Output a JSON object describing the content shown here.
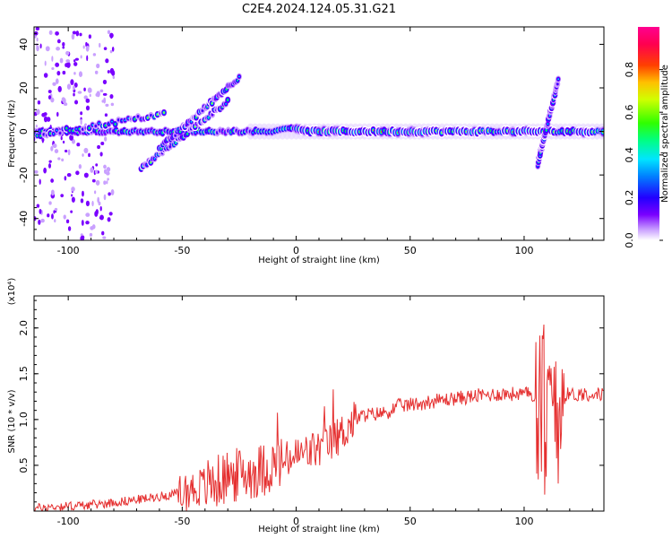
{
  "title": "C2E4.2024.124.05.31.G21",
  "chart_data": [
    {
      "type": "heatmap",
      "title": "C2E4.2024.124.05.31.G21",
      "xlabel": "Height of straight line (km)",
      "ylabel": "Frequency (Hz)",
      "xlim": [
        -115,
        135
      ],
      "ylim": [
        -50,
        48
      ],
      "xticks": [
        -100,
        -50,
        0,
        50,
        100
      ],
      "yticks": [
        -40,
        -20,
        0,
        20,
        40
      ],
      "colorbar": {
        "label": "Normalized spectral amplitude",
        "ticks": [
          "0.0",
          "0.2",
          "0.4",
          "0.6",
          "0.8"
        ],
        "range": [
          0,
          1
        ],
        "colormap": "rainbow"
      },
      "features": [
        {
          "name": "main band",
          "x": [
            -115,
            135
          ],
          "y_center": 0,
          "note": "strong continuous ridge near 0 Hz"
        },
        {
          "name": "rising branch A",
          "x": [
            -115,
            -58
          ],
          "y": [
            -2,
            8
          ]
        },
        {
          "name": "rising branch B",
          "x": [
            -68,
            -30
          ],
          "y": [
            -17,
            14
          ]
        },
        {
          "name": "rising branch C",
          "x": [
            -60,
            -25
          ],
          "y": [
            -8,
            25
          ]
        },
        {
          "name": "spike near 110",
          "x": [
            106,
            115
          ],
          "y": [
            -15,
            24
          ]
        }
      ],
      "grid": false
    },
    {
      "type": "line",
      "xlabel": "Height of straight line (km)",
      "ylabel": "SNR (10 * v/v)",
      "yscale_label": "(x10⁴)",
      "xlim": [
        -115,
        135
      ],
      "ylim": [
        0,
        2.35
      ],
      "xticks": [
        -100,
        -50,
        0,
        50,
        100
      ],
      "yticks": [
        "0.5",
        "1.0",
        "1.5",
        "2.0"
      ],
      "series": [
        {
          "color": "#e53030",
          "x": [
            -115,
            -105,
            -95,
            -85,
            -75,
            -65,
            -55,
            -45,
            -40,
            -35,
            -30,
            -25,
            -20,
            -15,
            -10,
            -5,
            0,
            5,
            10,
            15,
            20,
            25,
            30,
            35,
            40,
            45,
            50,
            55,
            60,
            70,
            80,
            90,
            100,
            105,
            108,
            110,
            112,
            115,
            118,
            120,
            125,
            130,
            135
          ],
          "y": [
            0.03,
            0.05,
            0.06,
            0.08,
            0.11,
            0.14,
            0.18,
            0.24,
            0.28,
            0.32,
            0.36,
            0.4,
            0.42,
            0.45,
            0.5,
            0.54,
            0.6,
            0.64,
            0.68,
            0.74,
            0.85,
            0.98,
            1.05,
            1.06,
            1.08,
            1.15,
            1.16,
            1.18,
            1.2,
            1.23,
            1.26,
            1.28,
            1.28,
            1.27,
            1.2,
            1.0,
            1.3,
            1.25,
            1.28,
            1.27,
            1.28,
            1.28,
            1.27
          ]
        }
      ],
      "grid": false
    }
  ],
  "colors": {
    "line": "#e53030"
  }
}
